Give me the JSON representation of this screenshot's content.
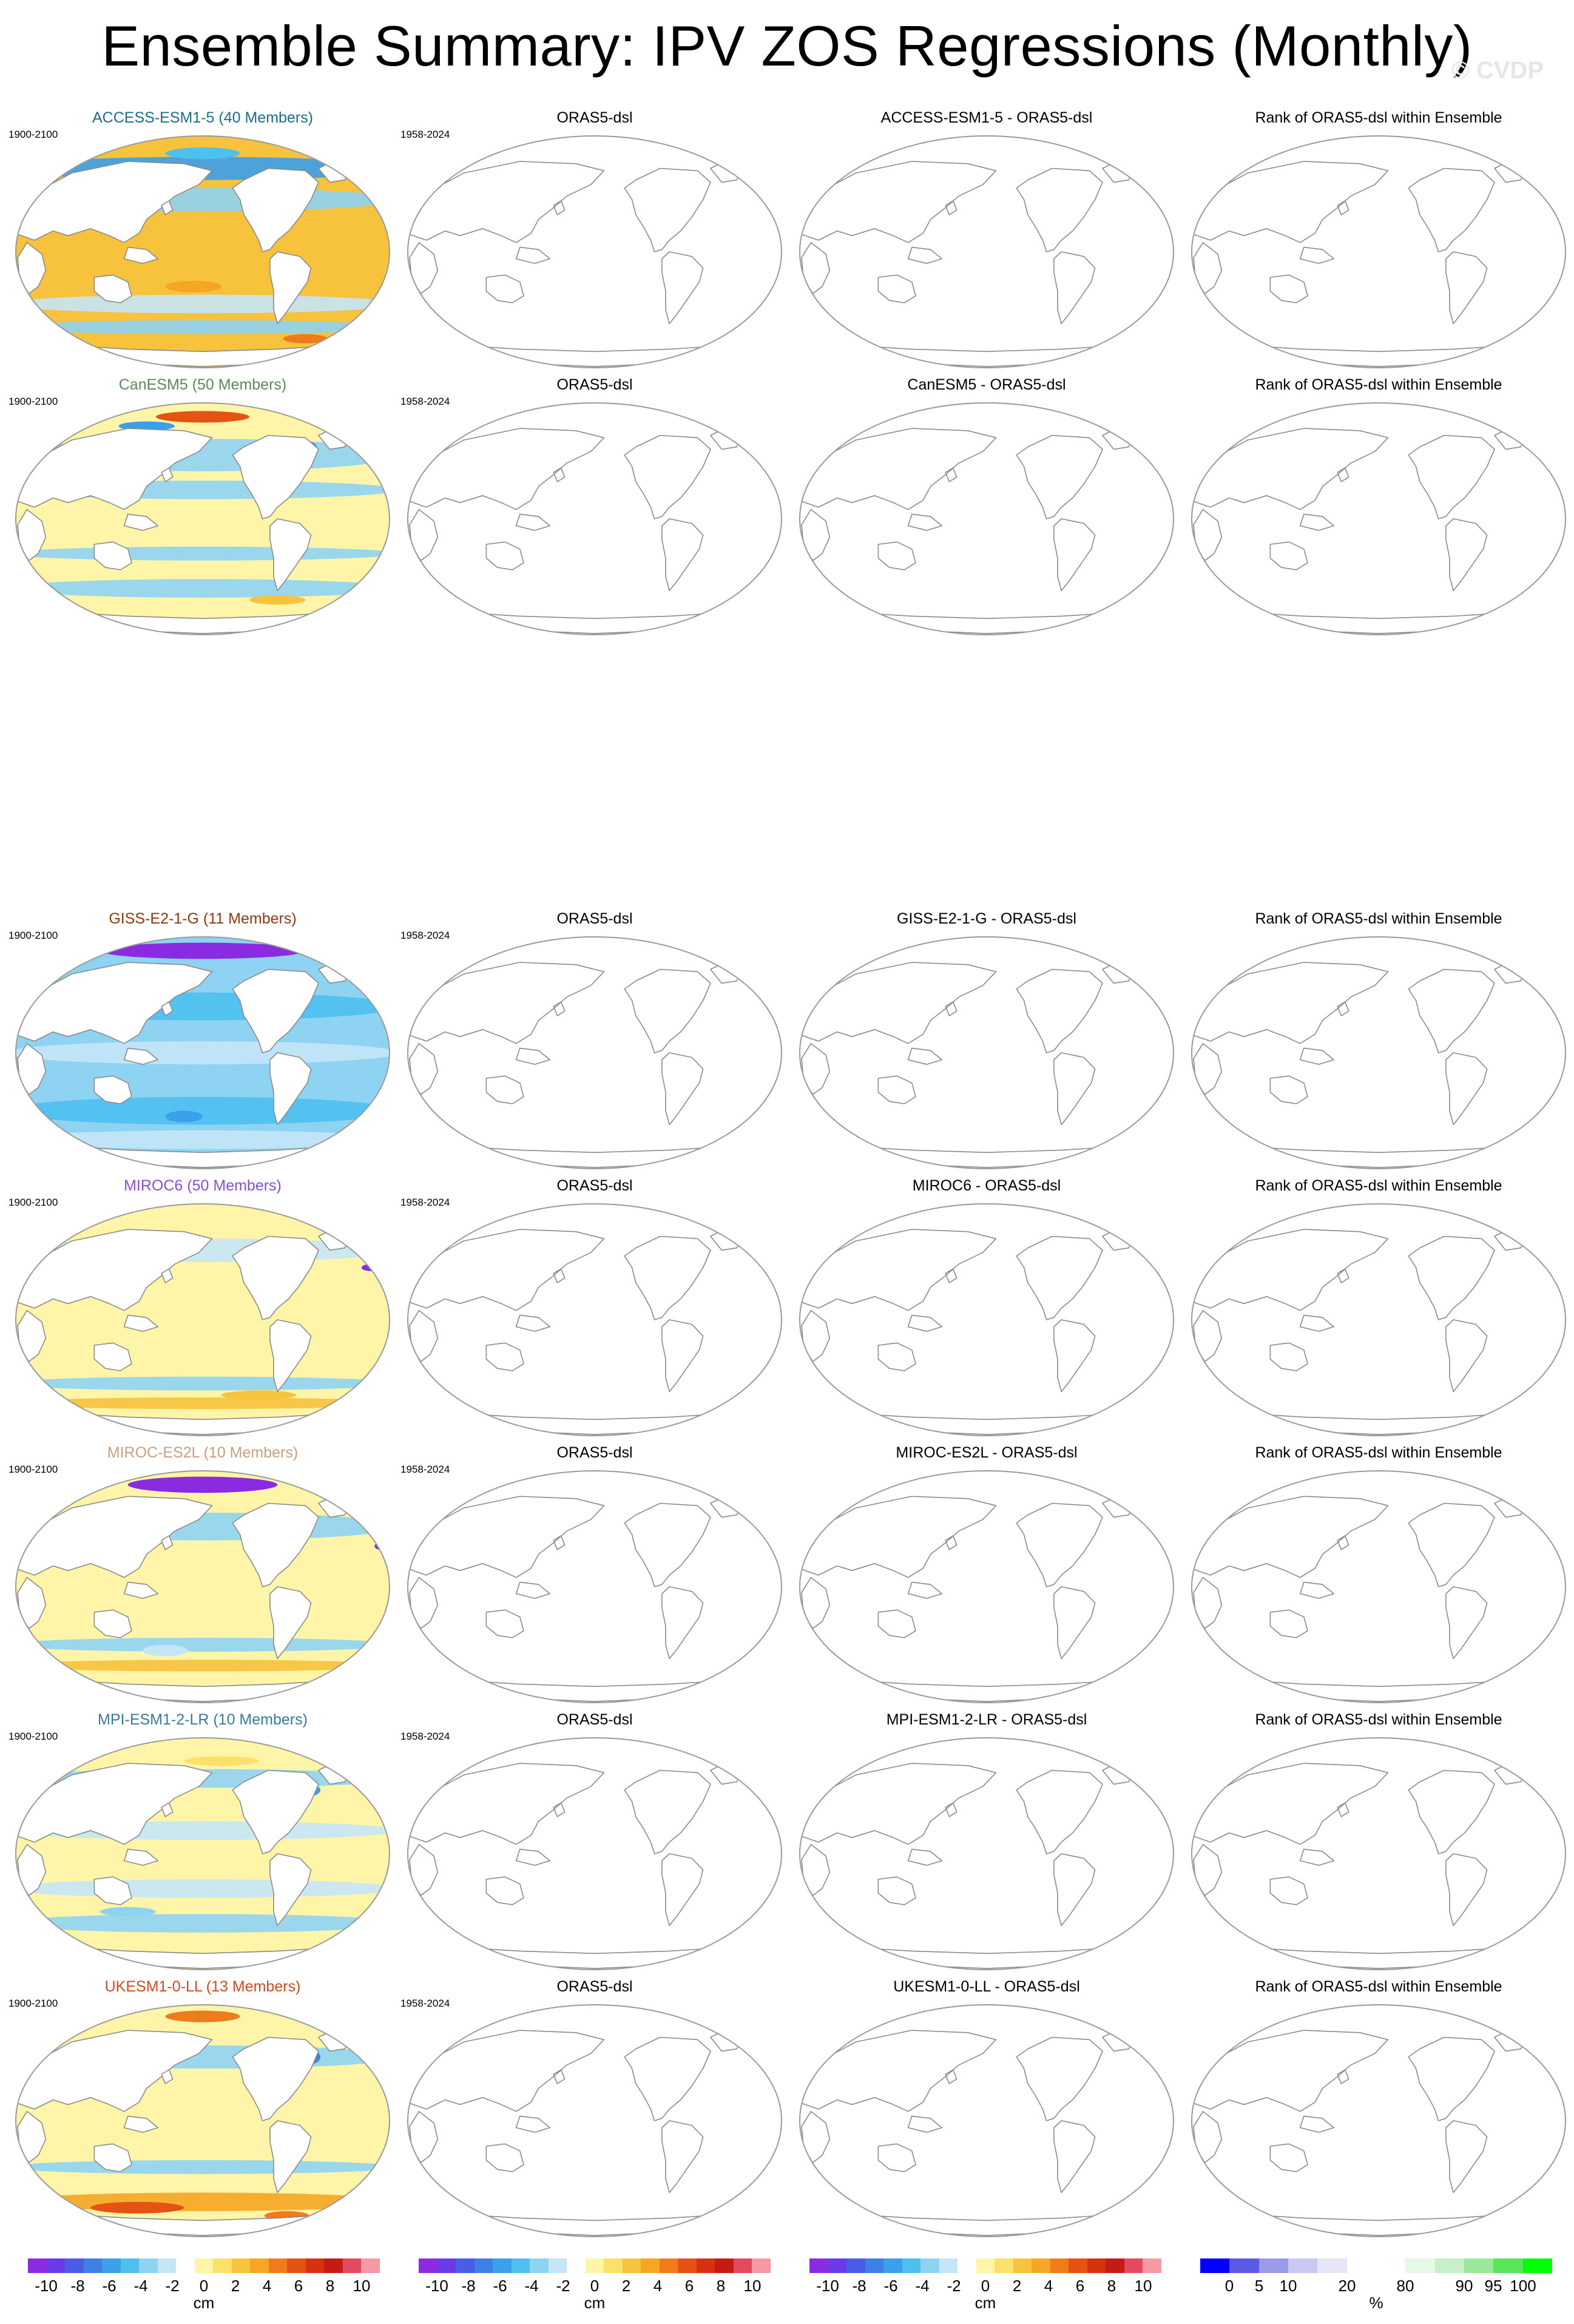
{
  "page": {
    "title": "Ensemble Summary: IPV ZOS Regressions (Monthly)",
    "watermark": "© CVDP"
  },
  "period_model": "1900-2100",
  "period_obs": "1958-2024",
  "obs_title": "ORAS5-dsl",
  "rank_title": "Rank of ORAS5-dsl within Ensemble",
  "rows": [
    {
      "model_title": "ACCESS-ESM1-5 (40 Members)",
      "title_color": "#1a6e8a",
      "diff_title": "ACCESS-ESM1-5 - ORAS5-dsl",
      "pattern": "access"
    },
    {
      "model_title": "CanESM5 (50 Members)",
      "title_color": "#5a8a5a",
      "diff_title": "CanESM5 - ORAS5-dsl",
      "pattern": "canesm"
    },
    {
      "model_title": "GISS-E2-1-G (11 Members)",
      "title_color": "#8a3a10",
      "diff_title": "GISS-E2-1-G - ORAS5-dsl",
      "pattern": "giss"
    },
    {
      "model_title": "MIROC6 (50 Members)",
      "title_color": "#8a4fd0",
      "diff_title": "MIROC6 - ORAS5-dsl",
      "pattern": "miroc6"
    },
    {
      "model_title": "MIROC-ES2L (10 Members)",
      "title_color": "#c8a080",
      "diff_title": "MIROC-ES2L - ORAS5-dsl",
      "pattern": "mirocES2L"
    },
    {
      "model_title": "MPI-ESM1-2-LR (10 Members)",
      "title_color": "#3a7a9a",
      "diff_title": "MPI-ESM1-2-LR - ORAS5-dsl",
      "pattern": "mpi"
    },
    {
      "model_title": "UKESM1-0-LL (13 Members)",
      "title_color": "#d04a20",
      "diff_title": "UKESM1-0-LL - ORAS5-dsl",
      "pattern": "ukesm"
    }
  ],
  "colorbars": {
    "diverging": {
      "colors": [
        "#8a2be2",
        "#6a3ae8",
        "#4a5de6",
        "#3f7fe8",
        "#3aa0ea",
        "#4ec0f0",
        "#8fd3f3",
        "#c5e6f7",
        "#ffffff",
        "#fff5a8",
        "#fbe06a",
        "#f7c23c",
        "#f5a623",
        "#ef7b1a",
        "#e65214",
        "#d9300f",
        "#c81a14",
        "#e34a60",
        "#f59aa3"
      ],
      "labels": [
        "-10",
        "-8",
        "-6",
        "-4",
        "-2",
        "0",
        "2",
        "4",
        "6",
        "8",
        "10"
      ],
      "unit": "cm"
    },
    "rank": {
      "colors": [
        "#0000ff",
        "#5a5ae6",
        "#9a9ae8",
        "#c8c8f0",
        "#e6e6f8",
        "#ffffff",
        "#ffffff",
        "#e6f8e6",
        "#c8f0c8",
        "#9ae89a",
        "#5ae65a",
        "#00ff00"
      ],
      "labels": [
        "0",
        "5",
        "10",
        "20",
        "80",
        "90",
        "95",
        "100"
      ],
      "unit": "%"
    }
  }
}
